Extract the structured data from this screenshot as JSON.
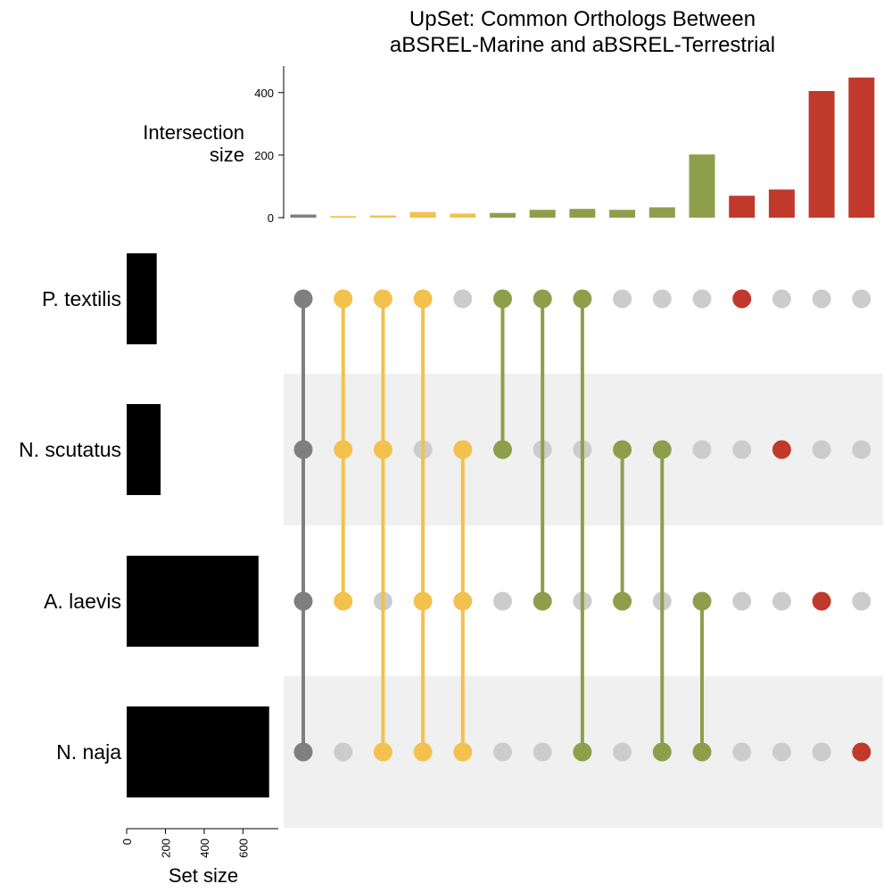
{
  "chart_data": {
    "type": "upset",
    "title_lines": [
      "UpSet: Common Orthologs Between",
      "aBSREL-Marine and aBSREL-Terrestrial"
    ],
    "intersection_axis": {
      "label_lines": [
        "Intersection",
        "size"
      ],
      "ylim": [
        0,
        465
      ],
      "ticks": [
        0,
        200,
        400
      ]
    },
    "set_size_axis": {
      "label": "Set size",
      "xlim": [
        0,
        750
      ],
      "ticks": [
        0,
        200,
        400,
        600
      ]
    },
    "sets": [
      {
        "name": "P. textilis",
        "size": 155
      },
      {
        "name": "N. scutatus",
        "size": 175
      },
      {
        "name": "A. laevis",
        "size": 680
      },
      {
        "name": "N. naja",
        "size": 735
      }
    ],
    "colors": {
      "all_four": "#7f7f7f",
      "three_sets": "#f2c14e",
      "two_sets": "#8f9e4b",
      "single_set": "#c0392b",
      "inactive_dot": "#cccccc",
      "stripe": "#f0f0f0",
      "set_bar": "#000000"
    },
    "intersections": [
      {
        "members": [
          0,
          1,
          2,
          3
        ],
        "size": 10,
        "color": "#7f7f7f"
      },
      {
        "members": [
          0,
          1,
          2
        ],
        "size": 5,
        "color": "#f2c14e"
      },
      {
        "members": [
          0,
          1,
          3
        ],
        "size": 7,
        "color": "#f2c14e"
      },
      {
        "members": [
          0,
          2,
          3
        ],
        "size": 18,
        "color": "#f2c14e"
      },
      {
        "members": [
          1,
          2,
          3
        ],
        "size": 13,
        "color": "#f2c14e"
      },
      {
        "members": [
          0,
          1
        ],
        "size": 15,
        "color": "#8f9e4b"
      },
      {
        "members": [
          0,
          2
        ],
        "size": 25,
        "color": "#8f9e4b"
      },
      {
        "members": [
          0,
          3
        ],
        "size": 28,
        "color": "#8f9e4b"
      },
      {
        "members": [
          1,
          2
        ],
        "size": 25,
        "color": "#8f9e4b"
      },
      {
        "members": [
          1,
          3
        ],
        "size": 33,
        "color": "#8f9e4b"
      },
      {
        "members": [
          2,
          3
        ],
        "size": 202,
        "color": "#8f9e4b"
      },
      {
        "members": [
          0
        ],
        "size": 70,
        "color": "#c0392b"
      },
      {
        "members": [
          1
        ],
        "size": 90,
        "color": "#c0392b"
      },
      {
        "members": [
          2
        ],
        "size": 405,
        "color": "#c0392b"
      },
      {
        "members": [
          3
        ],
        "size": 448,
        "color": "#c0392b"
      }
    ]
  }
}
